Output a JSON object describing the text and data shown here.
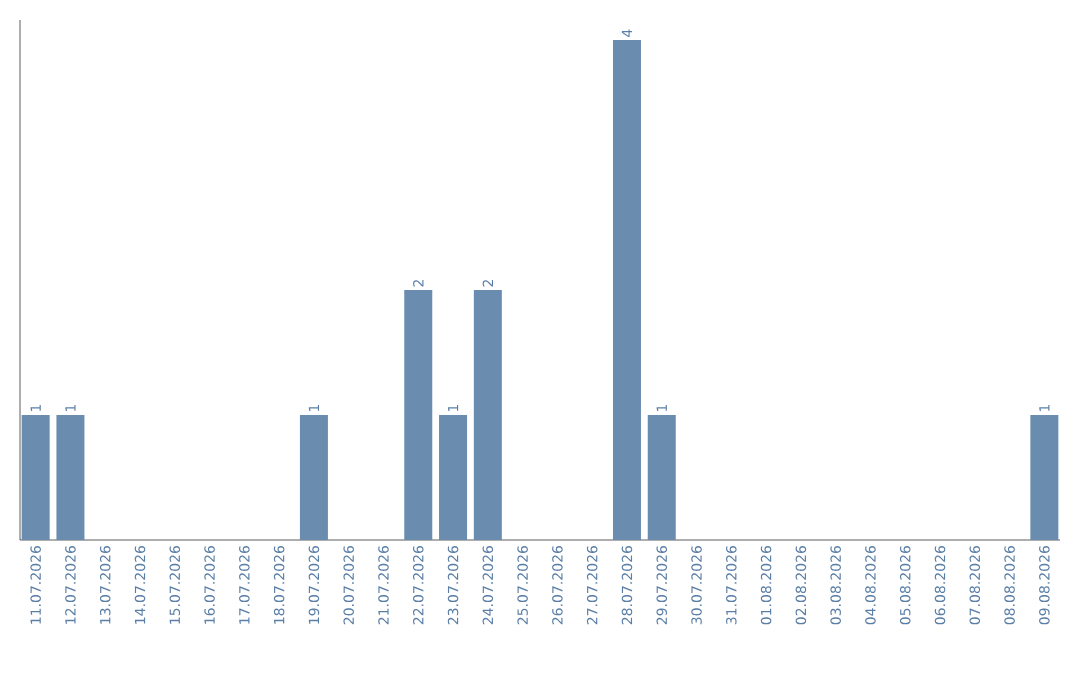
{
  "chart_data": {
    "type": "bar",
    "categories": [
      "11.07.2026",
      "12.07.2026",
      "13.07.2026",
      "14.07.2026",
      "15.07.2026",
      "16.07.2026",
      "17.07.2026",
      "18.07.2026",
      "19.07.2026",
      "20.07.2026",
      "21.07.2026",
      "22.07.2026",
      "23.07.2026",
      "24.07.2026",
      "25.07.2026",
      "26.07.2026",
      "27.07.2026",
      "28.07.2026",
      "29.07.2026",
      "30.07.2026",
      "31.07.2026",
      "01.08.2026",
      "02.08.2026",
      "03.08.2026",
      "04.08.2026",
      "05.08.2026",
      "06.08.2026",
      "07.08.2026",
      "08.08.2026",
      "09.08.2026"
    ],
    "values": [
      1,
      1,
      0,
      0,
      0,
      0,
      0,
      0,
      1,
      0,
      0,
      2,
      1,
      2,
      0,
      0,
      0,
      4,
      1,
      0,
      0,
      0,
      0,
      0,
      0,
      0,
      0,
      0,
      0,
      1
    ],
    "value_labels": [
      "1",
      "1",
      null,
      null,
      null,
      null,
      null,
      null,
      "1",
      null,
      null,
      "2",
      "1",
      "2",
      null,
      null,
      null,
      "4",
      "1",
      null,
      null,
      null,
      null,
      null,
      null,
      null,
      null,
      null,
      null,
      "1"
    ],
    "color": "#6a8caf"
  }
}
